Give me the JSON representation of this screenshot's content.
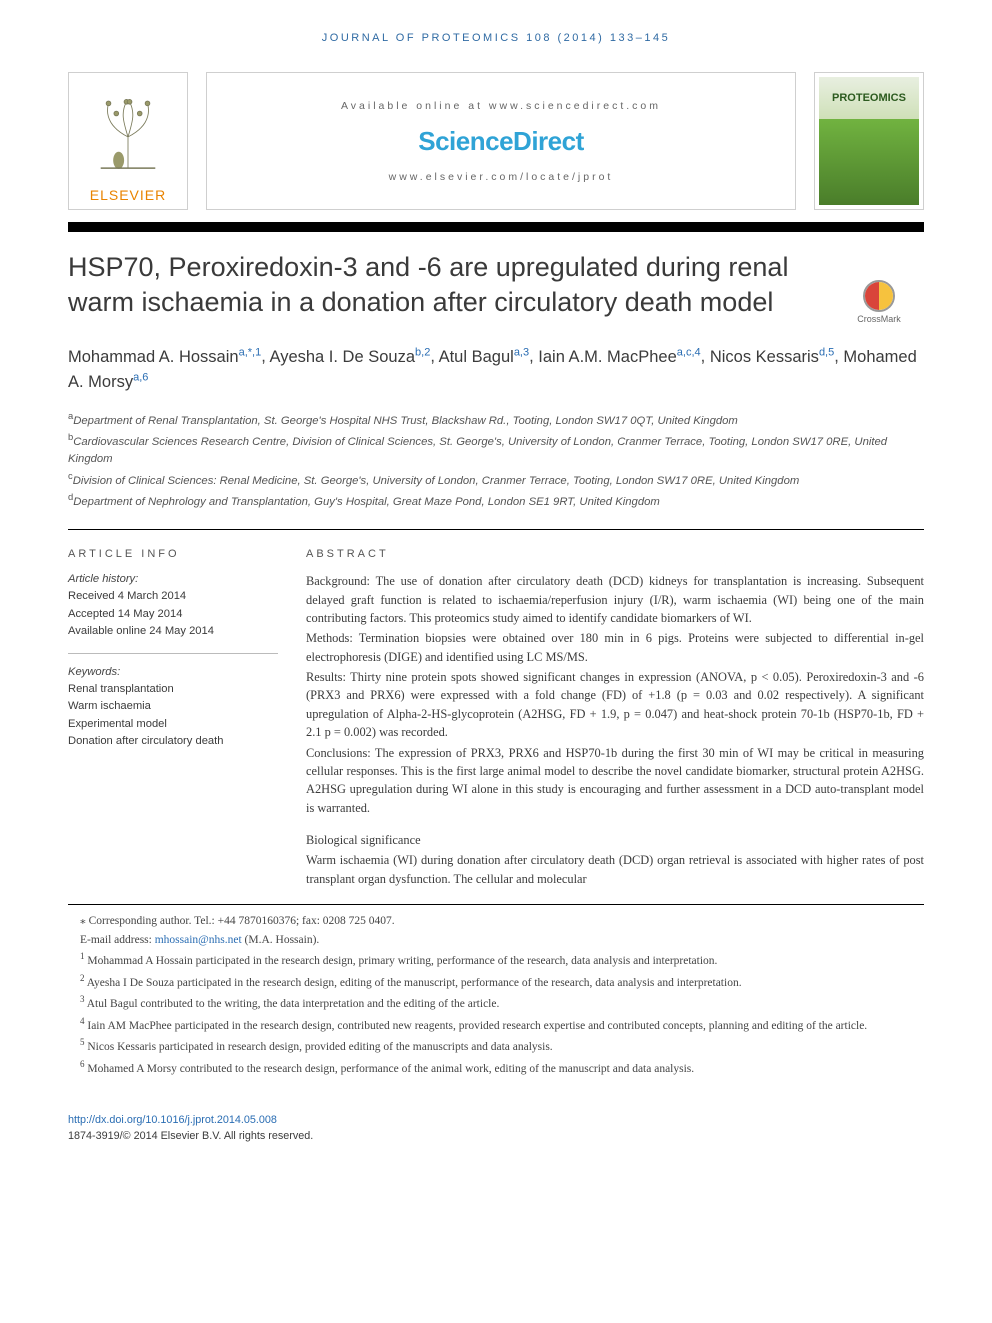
{
  "running_header": "JOURNAL OF PROTEOMICS 108 (2014) 133–145",
  "masthead": {
    "elsevier_label": "ELSEVIER",
    "available_line": "Available online at www.sciencedirect.com",
    "sciencedirect": "ScienceDirect",
    "locate_line": "www.elsevier.com/locate/jprot",
    "cover_title": "PROTEOMICS"
  },
  "article_title": "HSP70, Peroxiredoxin-3 and -6 are upregulated during renal warm ischaemia in a donation after circulatory death model",
  "crossmark_label": "CrossMark",
  "authors": [
    {
      "name": "Mohammad A. Hossain",
      "marks": "a,*,1"
    },
    {
      "name": "Ayesha I. De Souza",
      "marks": "b,2"
    },
    {
      "name": "Atul Bagul",
      "marks": "a,3"
    },
    {
      "name": "Iain A.M. MacPhee",
      "marks": "a,c,4"
    },
    {
      "name": "Nicos Kessaris",
      "marks": "d,5"
    },
    {
      "name": "Mohamed A. Morsy",
      "marks": "a,6"
    }
  ],
  "affiliations": [
    {
      "mark": "a",
      "text": "Department of Renal Transplantation, St. George's Hospital NHS Trust, Blackshaw Rd., Tooting, London SW17 0QT, United Kingdom"
    },
    {
      "mark": "b",
      "text": "Cardiovascular Sciences Research Centre, Division of Clinical Sciences, St. George's, University of London, Cranmer Terrace, Tooting, London SW17 0RE, United Kingdom"
    },
    {
      "mark": "c",
      "text": "Division of Clinical Sciences: Renal Medicine, St. George's, University of London, Cranmer Terrace, Tooting, London SW17 0RE, United Kingdom"
    },
    {
      "mark": "d",
      "text": "Department of Nephrology and Transplantation, Guy's Hospital, Great Maze Pond, London SE1 9RT, United Kingdom"
    }
  ],
  "info": {
    "heading": "ARTICLE INFO",
    "history_label": "Article history:",
    "history_lines": [
      "Received 4 March 2014",
      "Accepted 14 May 2014",
      "Available online 24 May 2014"
    ],
    "keywords_label": "Keywords:",
    "keywords": [
      "Renal transplantation",
      "Warm ischaemia",
      "Experimental model",
      "Donation after circulatory death"
    ]
  },
  "abstract": {
    "heading": "ABSTRACT",
    "paragraphs": [
      "Background: The use of donation after circulatory death (DCD) kidneys for transplantation is increasing. Subsequent delayed graft function is related to ischaemia/reperfusion injury (I/R), warm ischaemia (WI) being one of the main contributing factors. This proteomics study aimed to identify candidate biomarkers of WI.",
      "Methods: Termination biopsies were obtained over 180 min in 6 pigs. Proteins were subjected to differential in-gel electrophoresis (DIGE) and identified using LC MS/MS.",
      "Results: Thirty nine protein spots showed significant changes in expression (ANOVA, p < 0.05). Peroxiredoxin-3 and -6 (PRX3 and PRX6) were expressed with a fold change (FD) of +1.8 (p = 0.03 and 0.02 respectively). A significant upregulation of Alpha-2-HS-glycoprotein (A2HSG, FD + 1.9, p = 0.047) and heat-shock protein 70-1b (HSP70-1b, FD + 2.1 p = 0.002) was recorded.",
      "Conclusions: The expression of PRX3, PRX6 and HSP70-1b during the first 30 min of WI may be critical in measuring cellular responses. This is the first large animal model to describe the novel candidate biomarker, structural protein A2HSG. A2HSG upregulation during WI alone in this study is encouraging and further assessment in a DCD auto-transplant model is warranted."
    ],
    "biosig_label": "Biological significance",
    "biosig_text": "Warm ischaemia (WI) during donation after circulatory death (DCD) organ retrieval is associated with higher rates of post transplant organ dysfunction. The cellular and molecular"
  },
  "footnotes": {
    "corresponding_line": "⁎ Corresponding author. Tel.: +44 7870160376; fax: 0208 725 0407.",
    "email_label": "E-mail address:",
    "email": "mhossain@nhs.net",
    "email_paren": "(M.A. Hossain).",
    "notes": [
      {
        "mark": "1",
        "text": "Mohammad A Hossain participated in the research design, primary writing, performance of the research, data analysis and interpretation."
      },
      {
        "mark": "2",
        "text": "Ayesha I De Souza participated in the research design, editing of the manuscript, performance of the research, data analysis and interpretation."
      },
      {
        "mark": "3",
        "text": "Atul Bagul contributed to the writing, the data interpretation and the editing of the article."
      },
      {
        "mark": "4",
        "text": "Iain AM MacPhee participated in the research design, contributed new reagents, provided research expertise and contributed concepts, planning and editing of the article."
      },
      {
        "mark": "5",
        "text": "Nicos Kessaris participated in research design, provided editing of the manuscripts and data analysis."
      },
      {
        "mark": "6",
        "text": "Mohamed A Morsy contributed to the research design, performance of the animal work, editing of the manuscript and data analysis."
      }
    ]
  },
  "doi": {
    "url": "http://dx.doi.org/10.1016/j.jprot.2014.05.008",
    "copyright": "1874-3919/© 2014 Elsevier B.V. All rights reserved."
  },
  "colors": {
    "link": "#2a6db3",
    "accent": "#2fa3d6",
    "elsevier": "#e98300",
    "text": "#3b3b3b"
  }
}
